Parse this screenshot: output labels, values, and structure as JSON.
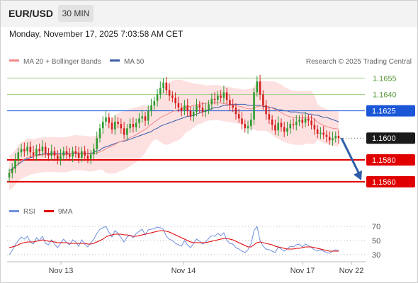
{
  "header": {
    "symbol": "EUR/USD",
    "timeframe": "30 MIN",
    "datetime": "Monday, November 17, 2025 7:03:58 AM CET"
  },
  "legend": {
    "ma20_label": "MA 20 + Bollinger Bands",
    "ma50_label": "MA 50",
    "credit": "Research © 2025 Trading Central"
  },
  "colors": {
    "up_candle": "#2e9a2e",
    "down_candle": "#d52020",
    "ma20": "#f08a8a",
    "ma50": "#3a5ea8",
    "bollinger_fill": "#fde0e0",
    "resistance_line": "#a6d38a",
    "pivot_line": "#1a56d6",
    "support_line": "#e00000",
    "rsi_line": "#6f8fe0",
    "rsi_ma_line": "#e00000"
  },
  "chart_data": [
    {
      "type": "candlestick",
      "ylim": [
        1.1545,
        1.1665
      ],
      "x_ticks": [
        "Nov 13",
        "Nov 14",
        "Nov 17",
        "Nov 22"
      ],
      "levels": [
        {
          "label": "1.1655",
          "value": 1.1655,
          "kind": "resistance"
        },
        {
          "label": "1.1640",
          "value": 1.164,
          "kind": "resistance"
        },
        {
          "label": "1.1625",
          "value": 1.1625,
          "kind": "pivot"
        },
        {
          "label": "1.1600",
          "value": 1.16,
          "kind": "last"
        },
        {
          "label": "1.1580",
          "value": 1.158,
          "kind": "support"
        },
        {
          "label": "1.1560",
          "value": 1.156,
          "kind": "support"
        }
      ],
      "forecast": {
        "from": 1.16,
        "to": 1.156
      },
      "close": [
        1.1568,
        1.1572,
        1.158,
        1.1587,
        1.159,
        1.1588,
        1.1592,
        1.1587,
        1.1584,
        1.159,
        1.1588,
        1.1592,
        1.1586,
        1.1584,
        1.1588,
        1.1584,
        1.158,
        1.1584,
        1.1588,
        1.1585,
        1.1583,
        1.1588,
        1.1586,
        1.1582,
        1.1588,
        1.1584,
        1.1581,
        1.1585,
        1.159,
        1.16,
        1.1609,
        1.1615,
        1.1619,
        1.1614,
        1.1608,
        1.1615,
        1.1613,
        1.1609,
        1.1603,
        1.1609,
        1.1613,
        1.161,
        1.1614,
        1.1618,
        1.162,
        1.1616,
        1.1625,
        1.163,
        1.1634,
        1.164,
        1.1646,
        1.1651,
        1.1644,
        1.1639,
        1.1637,
        1.1632,
        1.1628,
        1.1625,
        1.163,
        1.1625,
        1.162,
        1.1624,
        1.163,
        1.1628,
        1.1624,
        1.1626,
        1.1631,
        1.1636,
        1.1635,
        1.1639,
        1.1637,
        1.1642,
        1.1635,
        1.163,
        1.1628,
        1.1622,
        1.1618,
        1.1613,
        1.1609,
        1.1611,
        1.1617,
        1.1642,
        1.1652,
        1.164,
        1.163,
        1.1622,
        1.1617,
        1.1612,
        1.1607,
        1.1614,
        1.161,
        1.1606,
        1.1609,
        1.1613,
        1.1612,
        1.1615,
        1.1617,
        1.1614,
        1.1618,
        1.1616,
        1.1612,
        1.1608,
        1.1604,
        1.1605,
        1.1603,
        1.1601,
        1.1598,
        1.16,
        1.1602,
        1.16
      ],
      "ma50": [
        1.157,
        1.1572,
        1.1574,
        1.1576,
        1.1578,
        1.158,
        1.1581,
        1.1582,
        1.1583,
        1.1584,
        1.1585,
        1.1585,
        1.1586,
        1.1586,
        1.1586,
        1.1586,
        1.1586,
        1.1586,
        1.1586,
        1.1586,
        1.1586,
        1.1586,
        1.1586,
        1.1586,
        1.1586,
        1.1586,
        1.1586,
        1.1586,
        1.1587,
        1.1588,
        1.1589,
        1.1591,
        1.1592,
        1.1593,
        1.1594,
        1.1595,
        1.1596,
        1.1597,
        1.1597,
        1.1598,
        1.1599,
        1.16,
        1.1601,
        1.1602,
        1.1603,
        1.1604,
        1.1605,
        1.1606,
        1.1608,
        1.1609,
        1.1611,
        1.1612,
        1.1613,
        1.1614,
        1.1615,
        1.1616,
        1.1617,
        1.1618,
        1.1619,
        1.162,
        1.162,
        1.1621,
        1.1622,
        1.1623,
        1.1624,
        1.1625,
        1.1626,
        1.1627,
        1.1628,
        1.1628,
        1.1629,
        1.163,
        1.163,
        1.1631,
        1.1631,
        1.1631,
        1.1631,
        1.1631,
        1.1631,
        1.163,
        1.163,
        1.163,
        1.163,
        1.163,
        1.1629,
        1.1629,
        1.1628,
        1.1628,
        1.1627,
        1.1626,
        1.1626,
        1.1625,
        1.1625,
        1.1624,
        1.1624,
        1.1624,
        1.1623,
        1.1623,
        1.1623,
        1.1622,
        1.1622,
        1.1621,
        1.1621,
        1.162,
        1.1619,
        1.1619,
        1.1618,
        1.1617,
        1.1616,
        1.1615
      ]
    },
    {
      "type": "line",
      "title": "RSI",
      "series": [
        {
          "name": "RSI"
        },
        {
          "name": "9MA"
        }
      ],
      "ylim": [
        25,
        75
      ],
      "y_ticks": [
        70,
        50,
        30
      ],
      "rsi": [
        30,
        36,
        44,
        50,
        55,
        52,
        56,
        48,
        45,
        54,
        50,
        56,
        46,
        44,
        51,
        45,
        40,
        46,
        52,
        47,
        44,
        51,
        48,
        42,
        51,
        45,
        41,
        47,
        52,
        60,
        66,
        68,
        70,
        62,
        55,
        64,
        60,
        54,
        48,
        55,
        58,
        54,
        60,
        63,
        66,
        58,
        65,
        66,
        67,
        69,
        68,
        66,
        56,
        52,
        50,
        46,
        44,
        42,
        50,
        44,
        40,
        46,
        52,
        49,
        45,
        48,
        53,
        57,
        56,
        60,
        57,
        61,
        50,
        46,
        45,
        40,
        38,
        35,
        33,
        37,
        45,
        64,
        70,
        50,
        42,
        38,
        37,
        35,
        33,
        41,
        38,
        35,
        38,
        42,
        41,
        44,
        45,
        41,
        45,
        43,
        40,
        37,
        35,
        37,
        35,
        33,
        32,
        35,
        37,
        36
      ],
      "rsi_ma": [
        40,
        41,
        42,
        44,
        46,
        47,
        48,
        48,
        48,
        49,
        50,
        51,
        50,
        49,
        49,
        48,
        47,
        47,
        47,
        47,
        46,
        46,
        46,
        46,
        46,
        46,
        45,
        45,
        46,
        48,
        50,
        52,
        55,
        57,
        58,
        59,
        59,
        59,
        58,
        58,
        57,
        56,
        56,
        57,
        58,
        59,
        60,
        61,
        62,
        63,
        64,
        64,
        63,
        62,
        60,
        58,
        56,
        54,
        52,
        50,
        48,
        47,
        47,
        47,
        47,
        47,
        48,
        49,
        50,
        51,
        52,
        53,
        53,
        52,
        51,
        49,
        47,
        45,
        43,
        41,
        41,
        44,
        47,
        48,
        47,
        46,
        45,
        44,
        42,
        41,
        40,
        39,
        38,
        38,
        38,
        39,
        39,
        40,
        41,
        41,
        41,
        40,
        39,
        38,
        37,
        36,
        35,
        35,
        35,
        35
      ]
    }
  ]
}
